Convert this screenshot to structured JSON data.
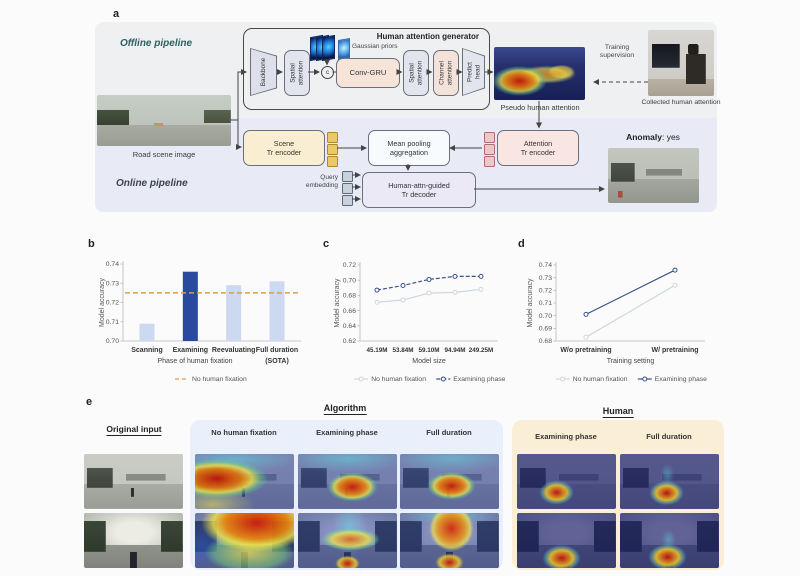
{
  "figure": {
    "panel_a": {
      "label": "a",
      "offline_label": "Offline pipeline",
      "online_label": "Online pipeline",
      "road_image_caption": "Road scene image",
      "generator_title": "Human attention generator",
      "backbone": "Backbone",
      "spatial_attention_1": "Spatial\nattention",
      "gaussian_priors_label": "Gaussian priors",
      "concat_symbol": "c",
      "conv_gru": "Conv-GRU",
      "spatial_attention_2": "Spatial\nattention",
      "channel_attention": "Channel\nattention",
      "predict_head": "Predict\nhead",
      "pseudo_attention_caption": "Pseudo human attention",
      "training_supervision": "Training\nsupervision",
      "collected_attention_caption": "Collected human attention",
      "scene_encoder": "Scene\nTr encoder",
      "mean_pooling": "Mean pooling\naggregation",
      "attention_encoder": "Attention\nTr encoder",
      "query_embedding": "Query\nembedding",
      "decoder": "Human-attn-guided\nTr decoder",
      "anomaly_label": "Anomaly",
      "anomaly_value": ": yes"
    },
    "panel_b_label": "b",
    "panel_c_label": "c",
    "panel_d_label": "d",
    "panel_e": {
      "label": "e",
      "original_input_header": "Original input",
      "algorithm_header": "Algorithm",
      "human_header": "Human",
      "algorithm_columns": [
        "No human fixation",
        "Examining phase",
        "Full duration"
      ],
      "human_columns": [
        "Examining phase",
        "Full duration"
      ]
    }
  },
  "chart_data": [
    {
      "panel": "b",
      "type": "bar",
      "categories": [
        "Scanning",
        "Examining",
        "Reevaluating",
        "Full duration"
      ],
      "category_notes": [
        "",
        "",
        "",
        "(SOTA)"
      ],
      "values": [
        0.709,
        0.736,
        0.729,
        0.731
      ],
      "highlight_index": 1,
      "baseline": {
        "label": "No human fixation",
        "value": 0.725
      },
      "xlabel": "Phase of human fixation",
      "ylabel": "Model accuracy",
      "ylim": [
        0.7,
        0.74
      ],
      "yticks": [
        0.7,
        0.71,
        0.72,
        0.73,
        0.74
      ],
      "bar_color": "#ccd9f1",
      "highlight_color": "#2a4a9d",
      "baseline_color": "#de9c45",
      "legend_position": "bottom"
    },
    {
      "panel": "c",
      "type": "line",
      "categories": [
        "45.19M",
        "53.84M",
        "59.10M",
        "94.94M",
        "249.25M"
      ],
      "series": [
        {
          "name": "No human fixation",
          "values": [
            0.671,
            0.674,
            0.683,
            0.684,
            0.688
          ],
          "color": "#d0d6df",
          "dash": ""
        },
        {
          "name": "Examining phase",
          "values": [
            0.687,
            0.693,
            0.701,
            0.705,
            0.705
          ],
          "color": "#3a5188",
          "dash": "4,2"
        }
      ],
      "xlabel": "Model size",
      "ylabel": "Model accuracy",
      "ylim": [
        0.62,
        0.72
      ],
      "yticks": [
        0.62,
        0.64,
        0.66,
        0.68,
        0.7,
        0.72
      ],
      "legend_position": "bottom"
    },
    {
      "panel": "d",
      "type": "line",
      "categories": [
        "W/o pretraining",
        "W/ pretraining"
      ],
      "series": [
        {
          "name": "No human fixation",
          "values": [
            0.683,
            0.724
          ],
          "color": "#d0d6df",
          "dash": ""
        },
        {
          "name": "Examining phase",
          "values": [
            0.701,
            0.736
          ],
          "color": "#3a5188",
          "dash": ""
        }
      ],
      "xlabel": "Training setting",
      "ylabel": "Model accuracy",
      "ylim": [
        0.68,
        0.74
      ],
      "yticks": [
        0.68,
        0.69,
        0.7,
        0.71,
        0.72,
        0.73,
        0.74
      ],
      "legend_position": "bottom"
    }
  ]
}
